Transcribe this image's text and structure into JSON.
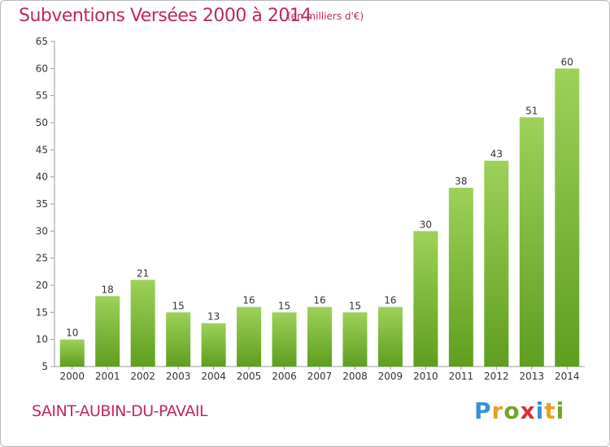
{
  "header": {
    "title": "Subventions Versées 2000 à 2014",
    "subtitle": "(en milliers d'€)"
  },
  "footer": {
    "commune": "SAINT-AUBIN-DU-PAVAIL",
    "logo_letters": [
      "P",
      "r",
      "o",
      "x",
      "i",
      "t",
      "i"
    ],
    "logo_colors": [
      "#3a8fd0",
      "#e8a020",
      "#6aa82a",
      "#d8303a",
      "#3a8fd0",
      "#e8a020",
      "#6aa82a"
    ]
  },
  "chart_data": {
    "type": "bar",
    "categories": [
      "2000",
      "2001",
      "2002",
      "2003",
      "2004",
      "2005",
      "2006",
      "2007",
      "2008",
      "2009",
      "2010",
      "2011",
      "2012",
      "2013",
      "2014"
    ],
    "values": [
      10,
      18,
      21,
      15,
      13,
      16,
      15,
      16,
      15,
      16,
      30,
      38,
      43,
      51,
      60
    ],
    "ylim": [
      5,
      65
    ],
    "yticks": [
      5,
      10,
      15,
      20,
      25,
      30,
      35,
      40,
      45,
      50,
      55,
      60,
      65
    ],
    "grid": false,
    "bar_color_top": "#9ed15a",
    "bar_color_bottom": "#5f9e1e"
  }
}
